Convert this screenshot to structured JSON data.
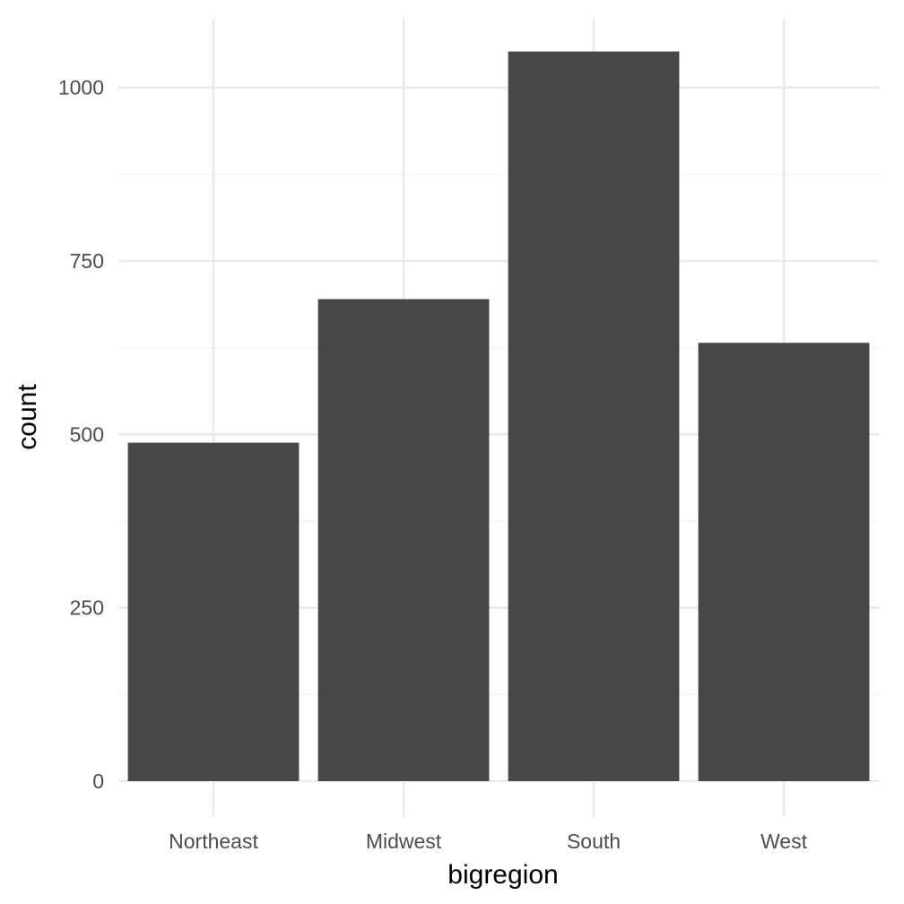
{
  "chart_data": {
    "type": "bar",
    "title": "",
    "xlabel": "bigregion",
    "ylabel": "count",
    "categories": [
      "Northeast",
      "Midwest",
      "South",
      "West"
    ],
    "values": [
      488,
      695,
      1052,
      632
    ],
    "ylim": [
      0,
      1100
    ],
    "y_ticks": [
      0,
      250,
      500,
      750,
      1000
    ],
    "y_tick_labels": [
      "0",
      "250",
      "500",
      "750",
      "1000"
    ],
    "grid": true,
    "legend": "none",
    "colors": {
      "bar": "#474747",
      "grid_major": "#ebebeb",
      "grid_minor": "#f3f3f3",
      "tick_text": "#4d4d4d",
      "title_text": "#000000",
      "background": "#ffffff"
    }
  }
}
